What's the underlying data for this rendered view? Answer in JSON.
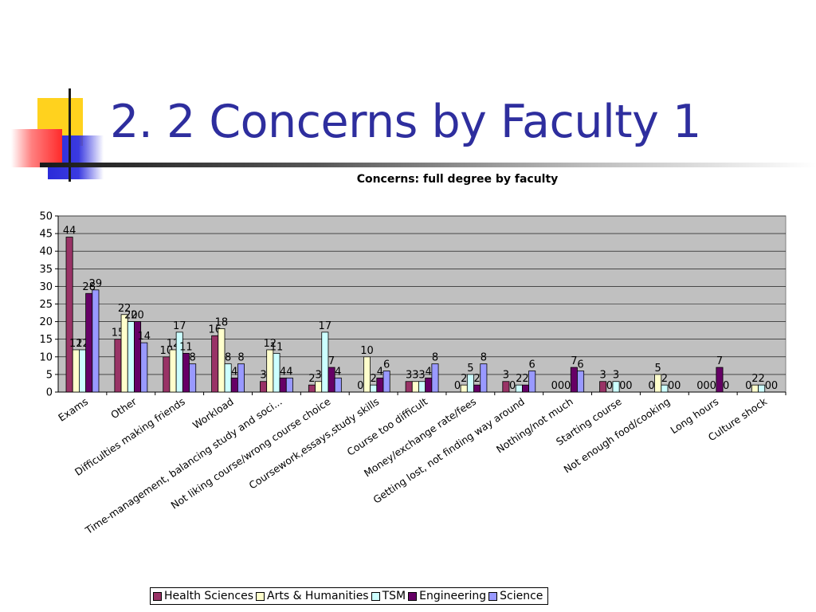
{
  "slide": {
    "title": "2. 2 Concerns by Faculty 1"
  },
  "chart_data": {
    "type": "bar",
    "title": "Concerns: full degree by faculty",
    "xlabel": "",
    "ylabel": "",
    "ylim": [
      0,
      50
    ],
    "yticks": [
      0,
      5,
      10,
      15,
      20,
      25,
      30,
      35,
      40,
      45,
      50
    ],
    "grid": true,
    "legend_position": "bottom",
    "plot_background": "#c0c0c0",
    "categories": [
      "Exams",
      "Other",
      "Difficulties making friends",
      "Workload",
      "Time-management, balancing study and soci...",
      "Not liking course/wrong course choice",
      "Coursework,essays,study skills",
      "Course too difficult",
      "Money/exchange rate/fees",
      "Getting lost, not finding way around",
      "Nothing/not much",
      "Starting course",
      "Not enough food/cooking",
      "Long hours",
      "Culture shock"
    ],
    "series": [
      {
        "name": "Health Sciences",
        "color": "#993366",
        "values": [
          44,
          15,
          10,
          16,
          3,
          2,
          0,
          3,
          0,
          3,
          0,
          3,
          0,
          0,
          0
        ]
      },
      {
        "name": "Arts & Humanities",
        "color": "#ffffcc",
        "values": [
          12,
          22,
          12,
          18,
          12,
          3,
          10,
          3,
          2,
          0,
          0,
          0,
          5,
          0,
          2
        ]
      },
      {
        "name": "TSM",
        "color": "#ccffff",
        "values": [
          12,
          20,
          17,
          8,
          11,
          17,
          2,
          3,
          5,
          2,
          0,
          3,
          2,
          0,
          2
        ]
      },
      {
        "name": "Engineering",
        "color": "#660066",
        "values": [
          28,
          20,
          11,
          4,
          4,
          7,
          4,
          4,
          2,
          2,
          7,
          0,
          0,
          7,
          0
        ]
      },
      {
        "name": "Science",
        "color": "#9999ff",
        "values": [
          29,
          14,
          8,
          8,
          4,
          4,
          6,
          8,
          8,
          6,
          6,
          0,
          0,
          0,
          0
        ]
      }
    ]
  }
}
